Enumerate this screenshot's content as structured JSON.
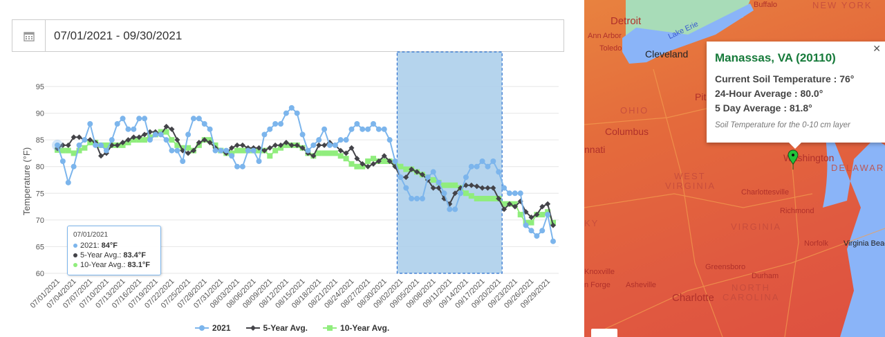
{
  "date_range": {
    "value": "07/01/2021 - 09/30/2021",
    "icon": "calendar-icon"
  },
  "chart_data": {
    "type": "line",
    "ylabel": "Temperature (°F)",
    "ylim": [
      60,
      95
    ],
    "yticks": [
      60,
      65,
      70,
      75,
      80,
      85,
      90,
      95
    ],
    "grid": true,
    "legend_position": "bottom",
    "xtick_labels": [
      "07/01/2021",
      "07/04/2021",
      "07/07/2021",
      "07/10/2021",
      "07/13/2021",
      "07/16/2021",
      "07/19/2021",
      "07/22/2021",
      "07/25/2021",
      "07/28/2021",
      "07/31/2021",
      "08/03/2021",
      "08/06/2021",
      "08/09/2021",
      "08/12/2021",
      "08/15/2021",
      "08/18/2021",
      "08/21/2021",
      "08/24/2021",
      "08/27/2021",
      "08/30/2021",
      "09/02/2021",
      "09/05/2021",
      "09/08/2021",
      "09/11/2021",
      "09/14/2021",
      "09/17/2021",
      "09/20/2021",
      "09/23/2021",
      "09/26/2021",
      "09/29/2021"
    ],
    "x_start": "07/01/2021",
    "x_end": "09/30/2021",
    "highlight_range": [
      "09/02/2021",
      "09/20/2021"
    ],
    "series": [
      {
        "name": "2021",
        "color": "#7cb5ec",
        "marker": "circle",
        "values": [
          84,
          81,
          77,
          80,
          84,
          85,
          88,
          84,
          84,
          83,
          85,
          88,
          89,
          87,
          87,
          89,
          89,
          85,
          86,
          86,
          85,
          83,
          83,
          81,
          86,
          89,
          89,
          88,
          87,
          83,
          83,
          83,
          82,
          80,
          80,
          83,
          83,
          81,
          86,
          87,
          88,
          88,
          90,
          91,
          90,
          86,
          83,
          84,
          85,
          87,
          84,
          84,
          85,
          85,
          87,
          88,
          87,
          87,
          88,
          87,
          87,
          85,
          81,
          78,
          76,
          74,
          74,
          74,
          78,
          79,
          77,
          75,
          72,
          72,
          75,
          78,
          80,
          80,
          81,
          80,
          81,
          79,
          76,
          75,
          75,
          75,
          69,
          68,
          67,
          68,
          71,
          66
        ]
      },
      {
        "name": "5-Year Avg.",
        "color": "#434348",
        "marker": "diamond",
        "values": [
          83.4,
          84,
          84,
          85.5,
          85.5,
          85,
          85,
          84.5,
          82,
          82.5,
          84,
          84,
          84.5,
          85,
          85.5,
          85.5,
          86,
          86.5,
          86.5,
          86,
          87.5,
          87,
          85,
          83,
          82.5,
          83,
          84.5,
          85,
          84.5,
          83.5,
          83,
          82.5,
          83.5,
          84,
          84,
          83.5,
          83.5,
          83.5,
          83,
          83.5,
          84,
          84,
          84.5,
          84,
          84,
          83.5,
          82.5,
          82,
          84,
          84,
          84.5,
          84,
          83,
          82.5,
          83.5,
          81.5,
          80.5,
          80,
          80.5,
          81,
          82,
          81,
          80,
          78,
          78,
          79.5,
          79,
          78.5,
          77.5,
          76,
          76,
          74,
          73,
          75,
          76,
          76.5,
          76.5,
          76.3,
          76,
          76,
          76,
          74,
          72,
          73,
          72.5,
          73.5,
          71.5,
          70.5,
          71,
          72.5,
          73,
          69
        ]
      },
      {
        "name": "10-Year Avg.",
        "color": "#90ed7d",
        "marker": "square",
        "values": [
          83.1,
          83,
          83,
          82.5,
          83,
          83.5,
          84.5,
          84.5,
          84,
          84,
          84,
          84,
          84,
          84.5,
          85,
          85,
          85,
          85.5,
          86,
          86.5,
          86.5,
          85,
          84,
          83.5,
          83.5,
          83,
          84,
          85,
          85,
          84,
          83,
          82.5,
          82.5,
          83,
          83,
          83,
          83,
          83,
          83,
          82,
          83,
          83.5,
          84,
          84,
          84,
          83.5,
          82.5,
          82,
          82.5,
          82.5,
          82.5,
          82.5,
          82,
          81.5,
          80.5,
          80,
          80,
          81,
          81.5,
          81,
          81,
          81,
          80.5,
          80,
          79.5,
          79.5,
          79,
          78.5,
          78,
          77.5,
          77,
          76.5,
          76.5,
          76.5,
          76,
          75,
          74.5,
          74,
          74,
          74,
          74,
          74,
          73,
          73,
          73,
          71,
          69.5,
          69.5,
          71,
          71,
          71.5,
          69.5
        ]
      }
    ]
  },
  "tooltip": {
    "date": "07/01/2021",
    "rows": [
      {
        "label": "2021: ",
        "value": "84°F"
      },
      {
        "label": "5-Year Avg.: ",
        "value": "83.4°F"
      },
      {
        "label": "10-Year Avg.: ",
        "value": "83.1°F"
      }
    ]
  },
  "map": {
    "labels": [
      "Detroit",
      "Ann Arbor",
      "Toledo",
      "Cleveland",
      "Buffalo",
      "Lake Erie",
      "Columbus",
      "nnati",
      "Pit",
      "Washington",
      "Charlottesville",
      "Richmond",
      "Norfolk",
      "Virginia Beac",
      "Greensboro",
      "Durham",
      "Knoxville",
      "Asheville",
      "n Forge",
      "Charlotte"
    ],
    "states": [
      "NEW YORK",
      "OHIO",
      "WEST",
      "VIRGINIA",
      "VIRGINIA",
      "NORTH",
      "CAROLINA",
      "DELAWARE",
      "KY"
    ],
    "popup": {
      "title": "Manassas, VA (20110)",
      "current": "Current Soil Temperature : 76°",
      "avg24": "24-Hour Average : 80.0°",
      "avg5": "5 Day Average : 81.8°",
      "note": "Soil Temperature for the 0-10 cm layer"
    },
    "marker_color": "#22c43a"
  }
}
